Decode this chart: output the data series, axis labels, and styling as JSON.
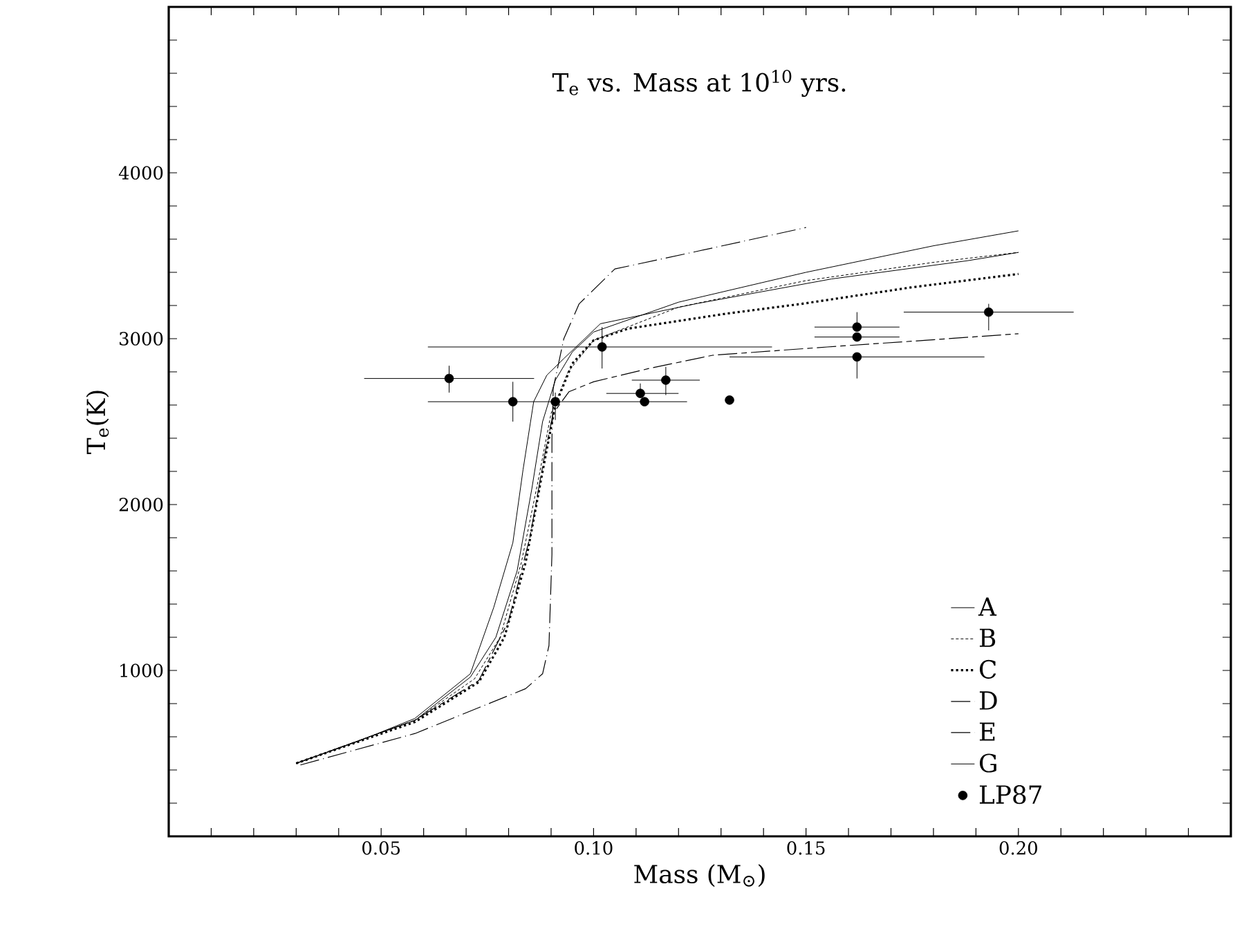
{
  "chart_data": {
    "type": "line",
    "title": "T$_{e}$ vs. Mass at 10$^{10}$ yrs.",
    "xlabel": "Mass (M$_{⊙}$)",
    "ylabel": "T$_{e}$(K)",
    "xlim": [
      0,
      0.25
    ],
    "ylim": [
      0,
      5000
    ],
    "xticks": [
      {
        "value": 0.01,
        "label": null
      },
      {
        "value": 0.02,
        "label": null
      },
      {
        "value": 0.03,
        "label": null
      },
      {
        "value": 0.04,
        "label": null
      },
      {
        "value": 0.05,
        "label": "0.05"
      },
      {
        "value": 0.06,
        "label": null
      },
      {
        "value": 0.07,
        "label": null
      },
      {
        "value": 0.08,
        "label": null
      },
      {
        "value": 0.09,
        "label": null
      },
      {
        "value": 0.1,
        "label": "0.10"
      },
      {
        "value": 0.11,
        "label": null
      },
      {
        "value": 0.12,
        "label": null
      },
      {
        "value": 0.13,
        "label": null
      },
      {
        "value": 0.14,
        "label": null
      },
      {
        "value": 0.15,
        "label": "0.15"
      },
      {
        "value": 0.16,
        "label": null
      },
      {
        "value": 0.17,
        "label": null
      },
      {
        "value": 0.18,
        "label": null
      },
      {
        "value": 0.19,
        "label": null
      },
      {
        "value": 0.2,
        "label": "0.20"
      },
      {
        "value": 0.21,
        "label": null
      },
      {
        "value": 0.22,
        "label": null
      },
      {
        "value": 0.23,
        "label": null
      },
      {
        "value": 0.24,
        "label": null
      }
    ],
    "yticks": [
      {
        "value": 200,
        "label": null
      },
      {
        "value": 400,
        "label": null
      },
      {
        "value": 600,
        "label": null
      },
      {
        "value": 800,
        "label": null
      },
      1000,
      {
        "value": 1200,
        "label": null
      },
      {
        "value": 1400,
        "label": null
      },
      {
        "value": 1600,
        "label": null
      },
      {
        "value": 1800,
        "label": null
      },
      2000,
      {
        "value": 2200,
        "label": null
      },
      {
        "value": 2400,
        "label": null
      },
      {
        "value": 2600,
        "label": null
      },
      {
        "value": 2800,
        "label": null
      },
      3000,
      {
        "value": 3200,
        "label": null
      },
      {
        "value": 3400,
        "label": null
      },
      {
        "value": 3600,
        "label": null
      },
      {
        "value": 3800,
        "label": null
      },
      4000,
      {
        "value": 4200,
        "label": null
      },
      {
        "value": 4400,
        "label": null
      },
      {
        "value": 4600,
        "label": null
      },
      {
        "value": 4800,
        "label": null
      }
    ],
    "legend": "bottom right",
    "grid": false,
    "series": [
      {
        "name": "A",
        "color": "#000000",
        "line_style": "solid",
        "x": [
          0.03,
          0.058,
          0.071,
          0.077,
          0.082,
          0.0855,
          0.088,
          0.091,
          0.095,
          0.1,
          0.12,
          0.15,
          0.18,
          0.2
        ],
        "values": [
          440,
          700,
          960,
          1200,
          1600,
          2100,
          2500,
          2750,
          2920,
          3040,
          3220,
          3400,
          3560,
          3650
        ]
      },
      {
        "name": "B",
        "color": "#000000",
        "line_style": "dashed",
        "x": [
          0.03,
          0.058,
          0.072,
          0.078,
          0.083,
          0.087,
          0.09,
          0.094,
          0.1,
          0.12,
          0.15,
          0.18,
          0.2
        ],
        "values": [
          440,
          700,
          950,
          1200,
          1650,
          2150,
          2550,
          2800,
          2990,
          3190,
          3350,
          3460,
          3520
        ]
      },
      {
        "name": "C",
        "color": "#000000",
        "line_style": "dotted",
        "x": [
          0.03,
          0.058,
          0.073,
          0.079,
          0.084,
          0.088,
          0.091,
          0.095,
          0.1,
          0.108,
          0.131,
          0.149,
          0.175,
          0.2
        ],
        "values": [
          440,
          690,
          930,
          1200,
          1650,
          2200,
          2600,
          2850,
          2990,
          3060,
          3150,
          3210,
          3310,
          3390
        ]
      },
      {
        "name": "D",
        "color": "#000000",
        "line_style": "longdash",
        "x": [
          0.03,
          0.058,
          0.073,
          0.08,
          0.085,
          0.0885,
          0.0905,
          0.0942,
          0.1,
          0.113,
          0.128,
          0.155,
          0.178,
          0.2
        ],
        "values": [
          440,
          700,
          940,
          1300,
          1800,
          2300,
          2550,
          2680,
          2740,
          2820,
          2900,
          2950,
          2990,
          3030
        ]
      },
      {
        "name": "E",
        "color": "#000000",
        "line_style": "dashdot",
        "x": [
          0.031,
          0.058,
          0.084,
          0.088,
          0.0895,
          0.0902,
          0.0902,
          0.0905,
          0.093,
          0.0966,
          0.105,
          0.125,
          0.15
        ],
        "values": [
          430,
          620,
          890,
          980,
          1150,
          1700,
          2400,
          2700,
          3000,
          3210,
          3420,
          3530,
          3670
        ]
      },
      {
        "name": "G",
        "color": "#000000",
        "line_style": "solid",
        "x": [
          0.03,
          0.0443,
          0.0579,
          0.071,
          0.0765,
          0.081,
          0.0834,
          0.0859,
          0.089,
          0.093,
          0.1016,
          0.124,
          0.156,
          0.188,
          0.2
        ],
        "values": [
          440,
          570,
          710,
          980,
          1380,
          1770,
          2210,
          2620,
          2780,
          2880,
          3090,
          3210,
          3360,
          3470,
          3520
        ]
      },
      {
        "name": "LP87",
        "type": "scatter",
        "marker": "circle",
        "color": "#000000",
        "x": [
          0.066,
          0.081,
          0.091,
          0.102,
          0.111,
          0.112,
          0.117,
          0.132,
          0.162,
          0.162,
          0.162,
          0.193
        ],
        "values": [
          2760,
          2620,
          2620,
          2950,
          2670,
          2620,
          2750,
          2630,
          3070,
          3010,
          2890,
          3160
        ],
        "xerrors": [
          [
            0.046,
            0.086
          ],
          null,
          [
            0.061,
            0.122
          ],
          [
            0.061,
            0.142
          ],
          [
            0.103,
            0.12
          ],
          null,
          [
            0.109,
            0.125
          ],
          null,
          [
            0.152,
            0.172
          ],
          [
            0.152,
            0.172
          ],
          [
            0.132,
            0.192
          ],
          [
            0.173,
            0.213
          ]
        ],
        "errors": [
          [
            2675,
            2837
          ],
          [
            2500,
            2740
          ],
          [
            2510,
            2675
          ],
          [
            2820,
            3070
          ],
          [
            2670,
            2730
          ],
          null,
          [
            2660,
            2830
          ],
          null,
          [
            3070,
            3160
          ],
          null,
          [
            2760,
            2890
          ],
          [
            3050,
            3210
          ]
        ]
      }
    ]
  }
}
